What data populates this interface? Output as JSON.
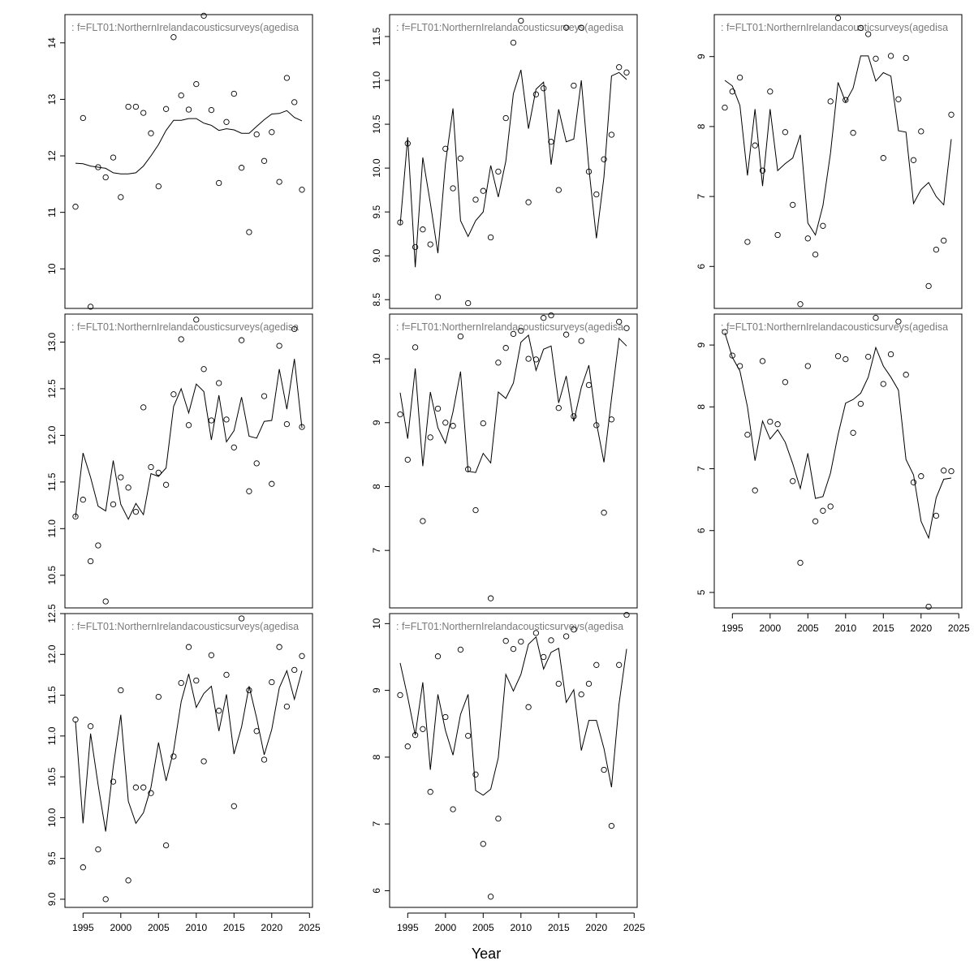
{
  "figure": {
    "xlabel": "Year",
    "panel_label": ":  f=FLT01:NorthernIrelandacousticsurveys(agedisa"
  },
  "colors": {
    "axis": "#000000",
    "line": "#000000",
    "points": "#000000",
    "label": "#7a7a7a"
  },
  "chart_data": [
    {
      "type": "scatter+line",
      "panel": 1,
      "xlim": [
        1992.6,
        2025.4
      ],
      "ylim": [
        9.3,
        14.5
      ],
      "yticks": [
        10,
        11,
        12,
        13,
        14
      ],
      "xticks": [],
      "x": [
        1994,
        1995,
        1996,
        1997,
        1998,
        1999,
        2000,
        2001,
        2002,
        2003,
        2004,
        2005,
        2006,
        2007,
        2008,
        2009,
        2010,
        2011,
        2012,
        2013,
        2014,
        2015,
        2016,
        2017,
        2018,
        2019,
        2020,
        2021,
        2022,
        2023,
        2024
      ],
      "points": [
        11.1,
        12.67,
        9.33,
        11.8,
        11.62,
        11.97,
        11.27,
        12.87,
        12.87,
        12.76,
        12.4,
        11.46,
        12.83,
        14.1,
        13.07,
        12.82,
        13.27,
        14.48,
        12.81,
        11.52,
        12.6,
        13.1,
        11.79,
        10.65,
        12.38,
        11.91,
        12.42,
        11.54,
        13.38,
        12.95,
        11.4
      ],
      "fitted": [
        11.87,
        11.86,
        11.82,
        11.8,
        11.78,
        11.7,
        11.68,
        11.68,
        11.7,
        11.82,
        12.0,
        12.2,
        12.45,
        12.63,
        12.63,
        12.66,
        12.66,
        12.58,
        12.54,
        12.45,
        12.48,
        12.46,
        12.4,
        12.4,
        12.52,
        12.64,
        12.74,
        12.75,
        12.8,
        12.68,
        12.62
      ]
    },
    {
      "type": "scatter+line",
      "panel": 2,
      "xlim": [
        1992.6,
        2025.4
      ],
      "ylim": [
        8.4,
        11.75
      ],
      "yticks": [
        8.5,
        9.0,
        9.5,
        10.0,
        10.5,
        11.0,
        11.5
      ],
      "xticks": [],
      "x": [
        1994,
        1995,
        1996,
        1997,
        1998,
        1999,
        2000,
        2001,
        2002,
        2003,
        2004,
        2005,
        2006,
        2007,
        2008,
        2009,
        2010,
        2011,
        2012,
        2013,
        2014,
        2015,
        2016,
        2017,
        2018,
        2019,
        2020,
        2021,
        2022,
        2023,
        2024
      ],
      "points": [
        9.38,
        10.28,
        9.1,
        9.3,
        9.13,
        8.53,
        10.22,
        9.77,
        10.11,
        8.46,
        9.64,
        9.74,
        9.21,
        9.96,
        10.57,
        11.43,
        11.68,
        9.61,
        10.84,
        10.91,
        10.3,
        9.75,
        11.6,
        10.94,
        11.6,
        9.96,
        9.7,
        10.1,
        10.38,
        11.15,
        11.09
      ],
      "fitted": [
        9.35,
        10.35,
        8.87,
        10.12,
        9.6,
        9.03,
        10.05,
        10.68,
        9.4,
        9.22,
        9.4,
        9.5,
        10.03,
        9.67,
        10.08,
        10.85,
        11.12,
        10.45,
        10.9,
        10.98,
        10.04,
        10.67,
        10.3,
        10.33,
        11.0,
        10.0,
        9.2,
        9.9,
        11.05,
        11.09,
        11.01
      ]
    },
    {
      "type": "scatter+line",
      "panel": 3,
      "xlim": [
        1992.6,
        2025.4
      ],
      "ylim": [
        5.4,
        9.6
      ],
      "yticks": [
        6,
        7,
        8,
        9
      ],
      "xticks": [],
      "x": [
        1994,
        1995,
        1996,
        1997,
        1998,
        1999,
        2000,
        2001,
        2002,
        2003,
        2004,
        2005,
        2006,
        2007,
        2008,
        2009,
        2010,
        2011,
        2012,
        2013,
        2014,
        2015,
        2016,
        2017,
        2018,
        2019,
        2020,
        2021,
        2022,
        2023,
        2024
      ],
      "points": [
        8.27,
        8.5,
        8.7,
        6.35,
        7.73,
        7.37,
        8.5,
        6.45,
        7.92,
        6.88,
        5.46,
        6.4,
        6.17,
        6.58,
        8.36,
        9.55,
        8.38,
        7.91,
        9.41,
        9.32,
        8.97,
        7.55,
        9.01,
        8.39,
        8.98,
        7.52,
        7.93,
        5.72,
        6.24,
        6.37,
        8.17
      ],
      "fitted": [
        8.66,
        8.58,
        8.3,
        7.3,
        8.25,
        7.15,
        8.25,
        7.37,
        7.47,
        7.55,
        7.88,
        6.62,
        6.45,
        6.87,
        7.62,
        8.63,
        8.35,
        8.55,
        9.01,
        9.01,
        8.65,
        8.77,
        8.72,
        7.94,
        7.92,
        6.9,
        7.1,
        7.2,
        7.0,
        6.88,
        7.82
      ]
    },
    {
      "type": "scatter+line",
      "panel": 4,
      "xlim": [
        1992.6,
        2025.4
      ],
      "ylim": [
        10.15,
        13.3
      ],
      "yticks": [
        10.5,
        11.0,
        11.5,
        12.0,
        12.5,
        13.0
      ],
      "xticks": [],
      "x": [
        1994,
        1995,
        1996,
        1997,
        1998,
        1999,
        2000,
        2001,
        2002,
        2003,
        2004,
        2005,
        2006,
        2007,
        2008,
        2009,
        2010,
        2011,
        2012,
        2013,
        2014,
        2015,
        2016,
        2017,
        2018,
        2019,
        2020,
        2021,
        2022,
        2023,
        2024
      ],
      "points": [
        11.13,
        11.31,
        10.65,
        10.82,
        10.22,
        11.26,
        11.55,
        11.44,
        11.18,
        12.3,
        11.66,
        11.6,
        11.47,
        12.44,
        13.03,
        12.11,
        13.24,
        12.71,
        12.16,
        12.56,
        12.17,
        11.87,
        13.02,
        11.4,
        11.7,
        12.42,
        11.48,
        12.96,
        12.12,
        13.14,
        12.09
      ],
      "fitted": [
        11.12,
        11.81,
        11.55,
        11.24,
        11.19,
        11.73,
        11.26,
        11.1,
        11.27,
        11.15,
        11.59,
        11.56,
        11.65,
        12.31,
        12.5,
        12.24,
        12.55,
        12.47,
        11.95,
        12.43,
        11.93,
        12.05,
        12.41,
        11.99,
        11.97,
        12.15,
        12.16,
        12.71,
        12.28,
        12.82,
        12.08
      ]
    },
    {
      "type": "scatter+line",
      "panel": 5,
      "xlim": [
        1992.6,
        2025.4
      ],
      "ylim": [
        6.1,
        10.7
      ],
      "yticks": [
        7,
        8,
        9,
        10
      ],
      "xticks": [],
      "x": [
        1994,
        1995,
        1996,
        1997,
        1998,
        1999,
        2000,
        2001,
        2002,
        2003,
        2004,
        2005,
        2006,
        2007,
        2008,
        2009,
        2010,
        2011,
        2012,
        2013,
        2014,
        2015,
        2016,
        2017,
        2018,
        2019,
        2020,
        2021,
        2022,
        2023,
        2024
      ],
      "points": [
        9.13,
        8.42,
        10.18,
        7.46,
        8.77,
        9.22,
        9.0,
        8.95,
        10.35,
        8.27,
        7.63,
        8.99,
        6.25,
        9.94,
        10.17,
        10.39,
        10.44,
        10.0,
        9.99,
        10.64,
        10.68,
        9.23,
        10.38,
        9.1,
        10.28,
        9.59,
        8.96,
        7.59,
        9.05,
        10.58,
        10.48
      ],
      "fitted": [
        9.47,
        8.75,
        9.85,
        8.32,
        9.48,
        8.92,
        8.68,
        9.17,
        9.8,
        8.24,
        8.22,
        8.52,
        8.37,
        9.48,
        9.38,
        9.62,
        10.26,
        10.37,
        9.82,
        10.15,
        10.2,
        9.31,
        9.73,
        9.02,
        9.55,
        9.9,
        9.0,
        8.38,
        9.38,
        10.32,
        10.2
      ]
    },
    {
      "type": "scatter+line",
      "panel": 6,
      "xlim": [
        1992.6,
        2025.4
      ],
      "ylim": [
        4.75,
        9.5
      ],
      "yticks": [
        5,
        6,
        7,
        8,
        9
      ],
      "xticks": [
        1995,
        2000,
        2005,
        2010,
        2015,
        2020,
        2025
      ],
      "x": [
        1994,
        1995,
        1996,
        1997,
        1998,
        1999,
        2000,
        2001,
        2002,
        2003,
        2004,
        2005,
        2006,
        2007,
        2008,
        2009,
        2010,
        2011,
        2012,
        2013,
        2014,
        2015,
        2016,
        2017,
        2018,
        2019,
        2020,
        2021,
        2022,
        2023,
        2024
      ],
      "points": [
        9.21,
        8.83,
        8.66,
        7.55,
        6.65,
        8.74,
        7.76,
        7.72,
        8.4,
        6.8,
        5.48,
        8.66,
        6.15,
        6.32,
        6.39,
        8.82,
        8.77,
        7.58,
        8.05,
        8.81,
        9.44,
        8.37,
        8.85,
        9.38,
        8.52,
        6.78,
        6.88,
        4.77,
        6.24,
        6.97,
        6.96
      ],
      "fitted": [
        9.2,
        8.8,
        8.58,
        8.0,
        7.13,
        7.77,
        7.48,
        7.63,
        7.43,
        7.08,
        6.68,
        7.25,
        6.52,
        6.55,
        6.93,
        7.55,
        8.06,
        8.12,
        8.22,
        8.48,
        8.96,
        8.66,
        8.48,
        8.27,
        7.15,
        6.9,
        6.15,
        5.88,
        6.53,
        6.83,
        6.85
      ]
    },
    {
      "type": "scatter+line",
      "panel": 7,
      "xlim": [
        1992.6,
        2025.4
      ],
      "ylim": [
        8.9,
        12.5
      ],
      "yticks": [
        9.0,
        9.5,
        10.0,
        10.5,
        11.0,
        11.5,
        12.0,
        12.5
      ],
      "xticks": [
        1995,
        2000,
        2005,
        2010,
        2015,
        2020,
        2025
      ],
      "x": [
        1994,
        1995,
        1996,
        1997,
        1998,
        1999,
        2000,
        2001,
        2002,
        2003,
        2004,
        2005,
        2006,
        2007,
        2008,
        2009,
        2010,
        2011,
        2012,
        2013,
        2014,
        2015,
        2016,
        2017,
        2018,
        2019,
        2020,
        2021,
        2022,
        2023,
        2024
      ],
      "points": [
        11.2,
        9.39,
        11.12,
        9.61,
        9.0,
        10.44,
        11.56,
        9.23,
        10.37,
        10.37,
        10.3,
        11.48,
        9.66,
        10.75,
        11.65,
        12.09,
        11.68,
        10.69,
        11.99,
        11.31,
        11.75,
        10.14,
        12.44,
        11.56,
        11.06,
        10.71,
        11.66,
        12.09,
        11.36,
        11.81,
        11.98
      ],
      "fitted": [
        11.18,
        9.93,
        11.03,
        10.4,
        9.83,
        10.62,
        11.26,
        10.2,
        9.93,
        10.06,
        10.37,
        10.92,
        10.45,
        10.82,
        11.42,
        11.76,
        11.35,
        11.52,
        11.61,
        11.06,
        11.51,
        10.78,
        11.11,
        11.61,
        11.22,
        10.77,
        11.08,
        11.59,
        11.8,
        11.45,
        11.8
      ]
    },
    {
      "type": "scatter+line",
      "panel": 8,
      "xlim": [
        1992.6,
        2025.4
      ],
      "ylim": [
        5.75,
        10.15
      ],
      "yticks": [
        6,
        7,
        8,
        9,
        10
      ],
      "xticks": [
        1995,
        2000,
        2005,
        2010,
        2015,
        2020,
        2025
      ],
      "x": [
        1994,
        1995,
        1996,
        1997,
        1998,
        1999,
        2000,
        2001,
        2002,
        2003,
        2004,
        2005,
        2006,
        2007,
        2008,
        2009,
        2010,
        2011,
        2012,
        2013,
        2014,
        2015,
        2016,
        2017,
        2018,
        2019,
        2020,
        2021,
        2022,
        2023,
        2024
      ],
      "points": [
        8.93,
        8.16,
        8.33,
        8.42,
        7.48,
        9.51,
        8.6,
        7.22,
        9.61,
        8.32,
        7.74,
        6.7,
        5.91,
        7.08,
        9.74,
        9.62,
        9.73,
        8.75,
        9.86,
        9.5,
        9.75,
        9.1,
        9.81,
        9.91,
        8.94,
        9.1,
        9.38,
        7.81,
        6.97,
        9.38,
        10.13
      ],
      "fitted": [
        9.41,
        8.9,
        8.33,
        9.12,
        7.81,
        8.94,
        8.4,
        8.03,
        8.64,
        8.94,
        7.5,
        7.43,
        7.52,
        7.99,
        9.24,
        8.99,
        9.24,
        9.69,
        9.8,
        9.32,
        9.57,
        9.63,
        8.82,
        9.01,
        8.1,
        8.55,
        8.55,
        8.13,
        7.55,
        8.8,
        9.62
      ]
    }
  ]
}
